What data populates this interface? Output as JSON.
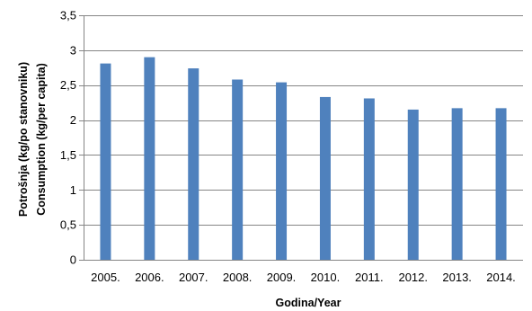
{
  "chart_data": {
    "type": "bar",
    "categories": [
      "2005.",
      "2006.",
      "2007.",
      "2008.",
      "2009.",
      "2010.",
      "2011.",
      "2012.",
      "2013.",
      "2014."
    ],
    "values": [
      2.81,
      2.9,
      2.74,
      2.58,
      2.54,
      2.33,
      2.31,
      2.15,
      2.17,
      2.17
    ],
    "xlabel": "Godina/Year",
    "ylabel_line1": "Potrošnja (kg/po stanovniku)",
    "ylabel_line2": "Consumption  (kg/per capita)",
    "ylim": [
      0,
      3.5
    ],
    "yticks": [
      0,
      0.5,
      1,
      1.5,
      2,
      2.5,
      3,
      3.5
    ],
    "ytick_labels": [
      "0",
      "0,5",
      "1",
      "1,5",
      "2",
      "2,5",
      "3",
      "3,5"
    ],
    "grid": true,
    "bar_color": "#4f81bd"
  }
}
